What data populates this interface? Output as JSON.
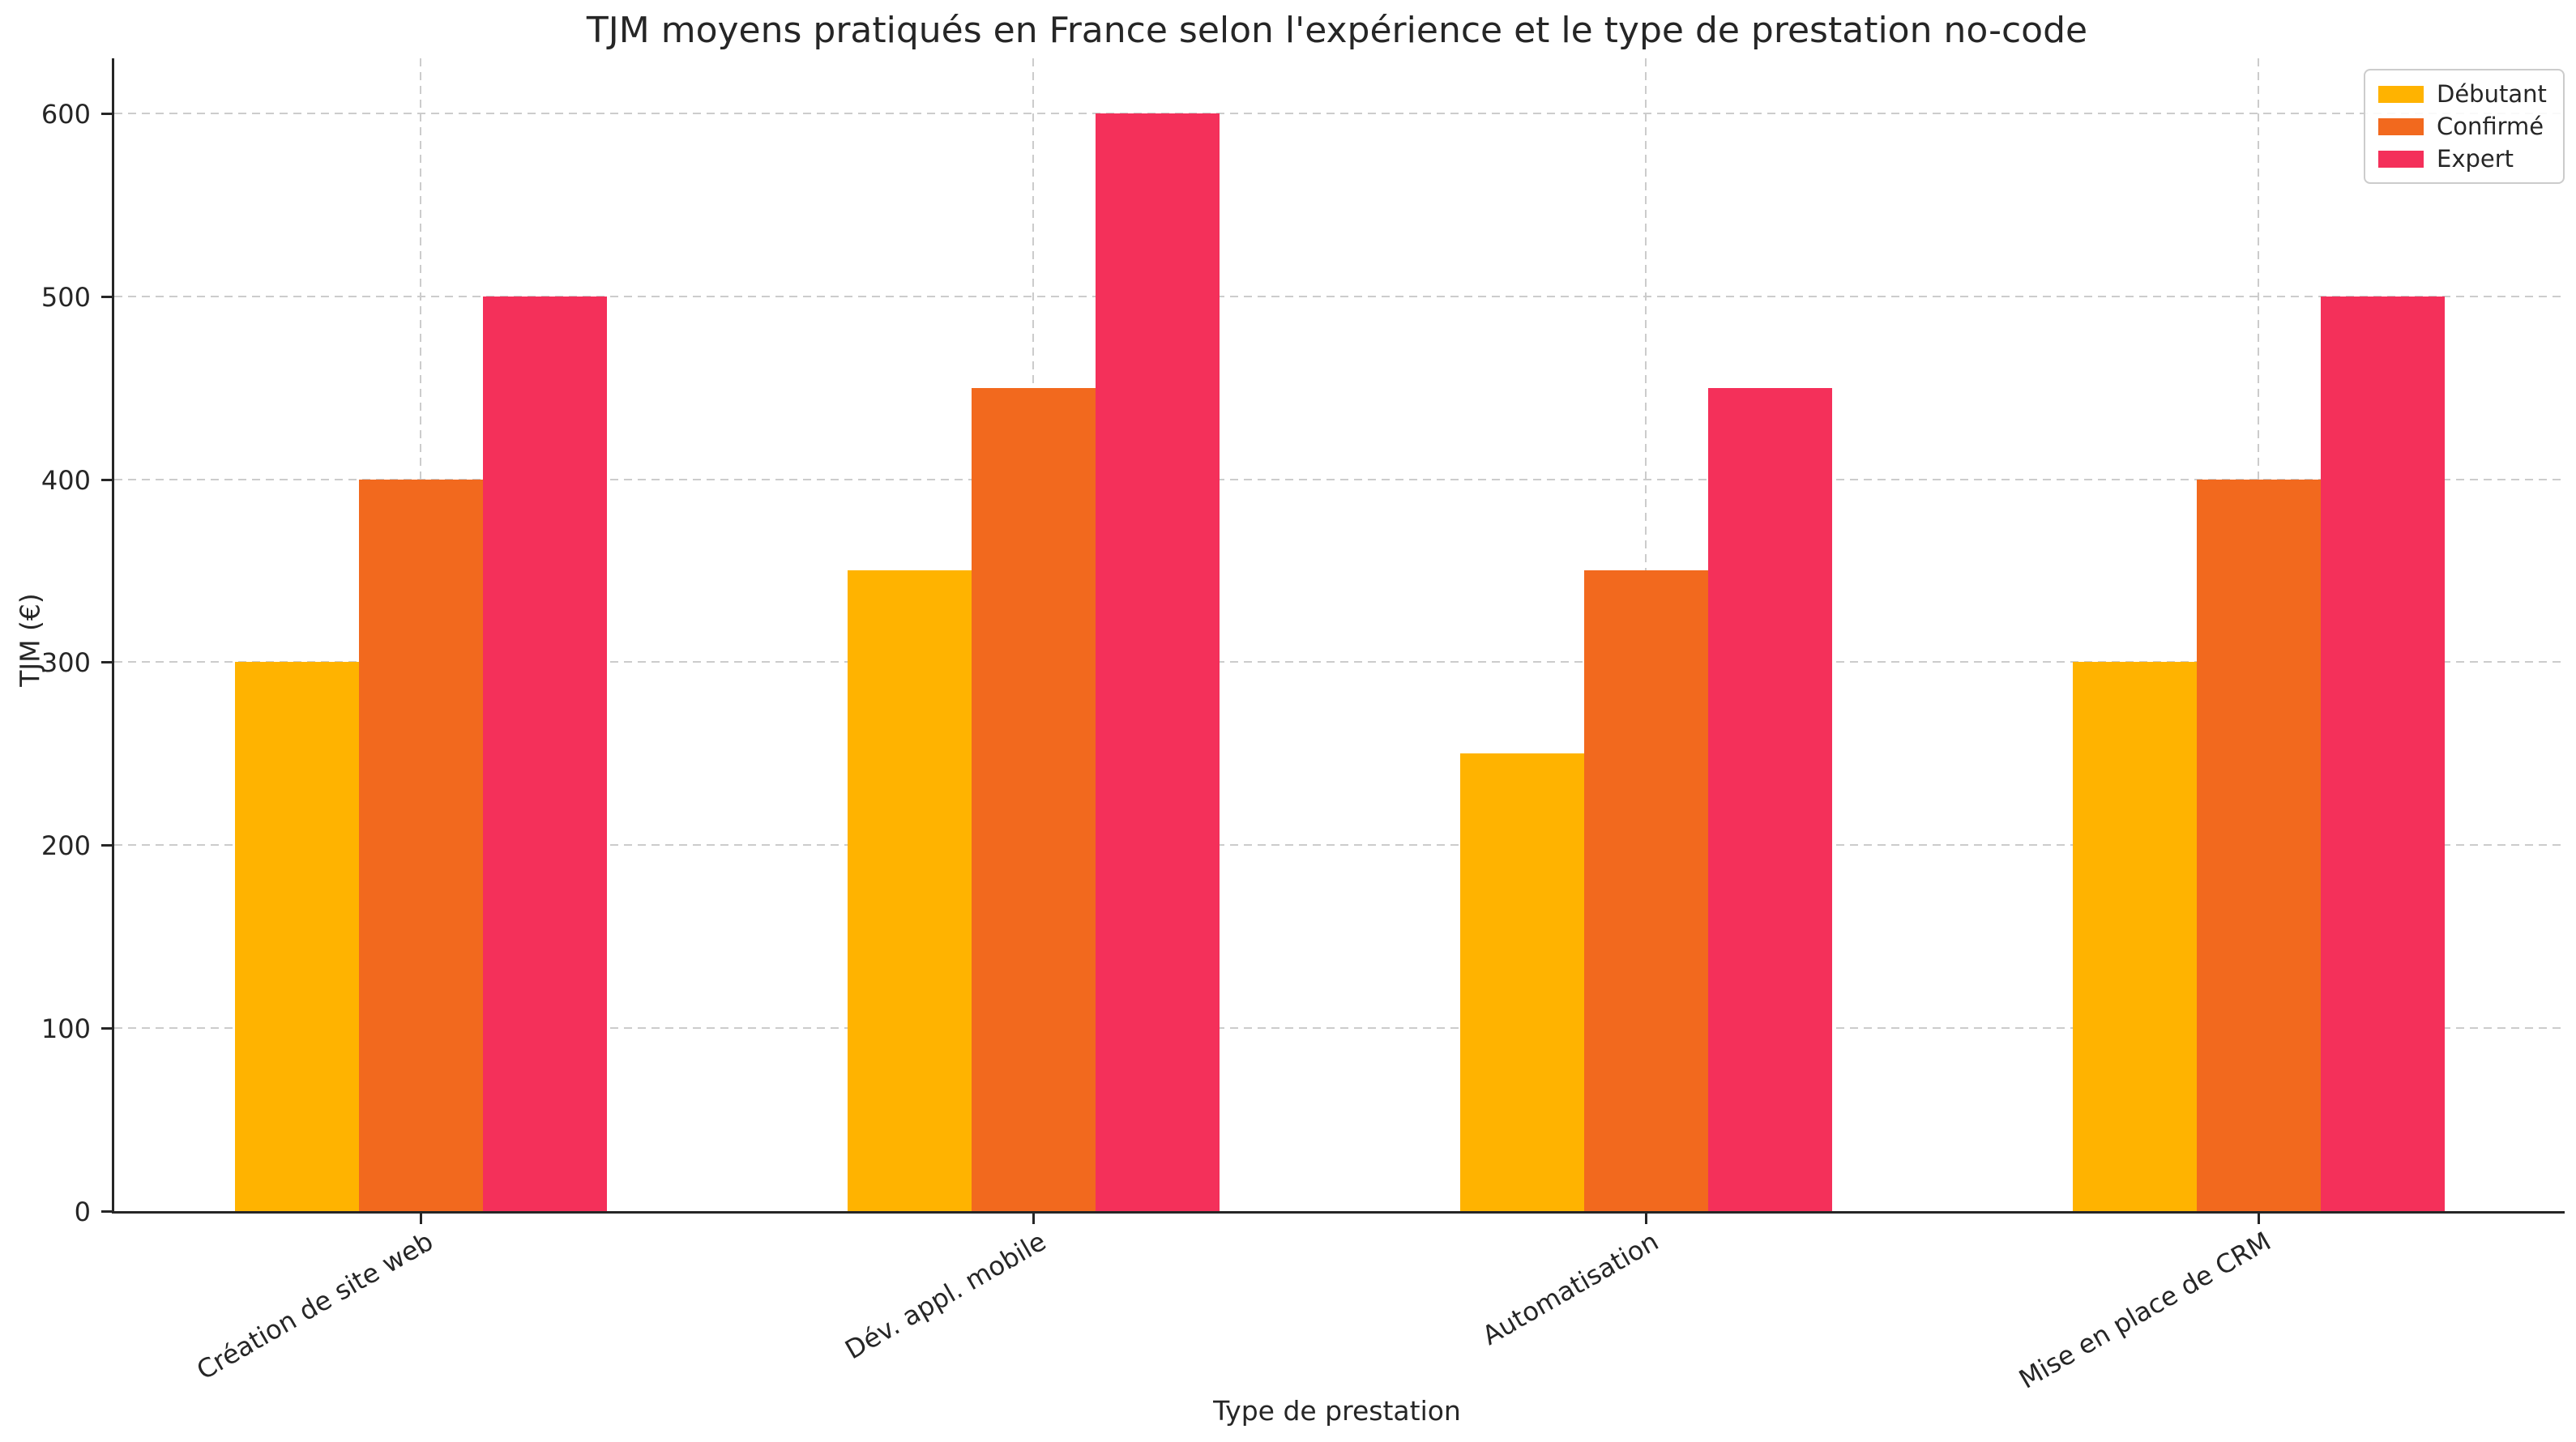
{
  "chart_data": {
    "type": "bar",
    "title": "TJM moyens pratiqués en France selon l'expérience et le type de prestation no-code",
    "xlabel": "Type de prestation",
    "ylabel": "TJM (€)",
    "categories": [
      "Création de site web",
      "Dév. appl. mobile",
      "Automatisation",
      "Mise en place de CRM"
    ],
    "series": [
      {
        "name": "Débutant",
        "color": "#FFB300",
        "values": [
          300,
          350,
          250,
          300
        ]
      },
      {
        "name": "Confirmé",
        "color": "#F2691E",
        "values": [
          400,
          450,
          350,
          400
        ]
      },
      {
        "name": "Expert",
        "color": "#F4305A",
        "values": [
          500,
          600,
          450,
          500
        ]
      }
    ],
    "ylim": [
      0,
      630
    ],
    "yticks": [
      0,
      100,
      200,
      300,
      400,
      500,
      600
    ],
    "grid": "dashed horizontal and vertical",
    "legend_position": "upper right",
    "xtick_rotation_deg": 30
  },
  "colors": {
    "grid": "#cccccc",
    "spine": "#262626",
    "text": "#262626",
    "legend_border": "#cccccc",
    "background": "#ffffff"
  }
}
